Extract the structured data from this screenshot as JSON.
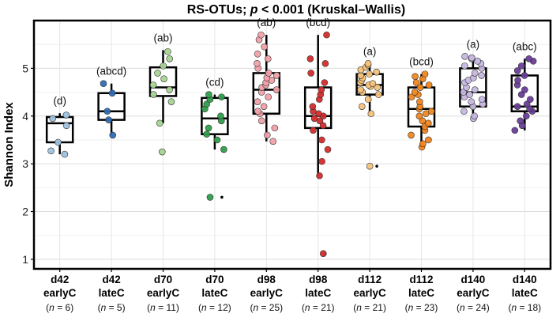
{
  "chart_data": {
    "type": "boxplot",
    "title_prefix": "RS-OTUs; ",
    "title_p": "p",
    "title_suffix": " < 0.001 (Kruskal–Wallis)",
    "ylabel": "Shannon Index",
    "ylim": [
      0.8,
      6.0
    ],
    "yticks": [
      1,
      2,
      3,
      4,
      5
    ],
    "grid": true,
    "groups": [
      {
        "line1": "d42",
        "line2": "earlyC",
        "n_label": "n",
        "n_value": "= 6)",
        "letter": "(d)",
        "color": "#9ec1dd",
        "q1": 3.45,
        "median": 3.85,
        "q3": 3.98,
        "whisker_low": 3.2,
        "whisker_high": 4.06,
        "points": [
          3.2,
          3.27,
          3.45,
          3.8,
          3.95,
          4.02
        ]
      },
      {
        "line1": "d42",
        "line2": "lateC",
        "n_label": "n",
        "n_value": "= 5)",
        "letter": "(abcd)",
        "color": "#2f6eb5",
        "q1": 3.92,
        "median": 4.1,
        "q3": 4.48,
        "whisker_low": 3.6,
        "whisker_high": 4.68,
        "points": [
          3.6,
          3.92,
          4.1,
          4.48,
          4.68
        ]
      },
      {
        "line1": "d70",
        "line2": "earlyC",
        "n_label": "n",
        "n_value": "= 11)",
        "letter": "(ab)",
        "color": "#a5d58f",
        "q1": 4.42,
        "median": 4.6,
        "q3": 5.02,
        "whisker_low": 3.85,
        "whisker_high": 5.38,
        "points": [
          3.25,
          3.85,
          4.3,
          4.45,
          4.55,
          4.65,
          4.78,
          4.9,
          5.05,
          5.2,
          5.35
        ]
      },
      {
        "line1": "d70",
        "line2": "lateC",
        "n_label": "n",
        "n_value": "= 12)",
        "letter": "(cd)",
        "color": "#2e9e4a",
        "q1": 3.62,
        "median": 3.95,
        "q3": 4.38,
        "whisker_low": 3.3,
        "whisker_high": 4.45,
        "outliers": [
          2.3
        ],
        "points": [
          2.3,
          3.3,
          3.5,
          3.62,
          3.75,
          3.9,
          4.0,
          4.15,
          4.25,
          4.35,
          4.4,
          4.45
        ]
      },
      {
        "line1": "d98",
        "line2": "earlyC",
        "n_label": "n",
        "n_value": "= 25)",
        "letter": "(ab)",
        "color": "#f2a0a8",
        "q1": 4.05,
        "median": 4.55,
        "q3": 4.9,
        "whisker_low": 3.47,
        "whisker_high": 5.7,
        "points": [
          3.47,
          3.6,
          3.75,
          3.9,
          4.05,
          4.1,
          4.2,
          4.3,
          4.4,
          4.5,
          4.55,
          4.6,
          4.65,
          4.7,
          4.75,
          4.8,
          4.85,
          4.9,
          5.0,
          5.1,
          5.2,
          5.3,
          5.45,
          5.6,
          5.7
        ]
      },
      {
        "line1": "d98",
        "line2": "lateC",
        "n_label": "n",
        "n_value": "= 21)",
        "letter": "(bcd)",
        "color": "#d42b2b",
        "q1": 3.75,
        "median": 4.0,
        "q3": 4.6,
        "whisker_low": 2.75,
        "whisker_high": 5.7,
        "outliers": [
          1.12
        ],
        "points": [
          1.12,
          2.75,
          3.05,
          3.3,
          3.5,
          3.7,
          3.8,
          3.9,
          3.95,
          4.0,
          4.05,
          4.1,
          4.2,
          4.35,
          4.45,
          4.55,
          4.7,
          4.9,
          5.1,
          5.2,
          5.7
        ]
      },
      {
        "line1": "d112",
        "line2": "earlyC",
        "n_label": "n",
        "n_value": "= 21)",
        "letter": "(a)",
        "color": "#f6c27a",
        "q1": 4.45,
        "median": 4.65,
        "q3": 4.88,
        "whisker_low": 4.05,
        "whisker_high": 5.1,
        "outliers": [
          2.95
        ],
        "points": [
          2.95,
          4.05,
          4.2,
          4.35,
          4.45,
          4.5,
          4.55,
          4.6,
          4.62,
          4.65,
          4.68,
          4.7,
          4.75,
          4.8,
          4.85,
          4.88,
          4.92,
          4.97,
          5.02,
          5.07,
          5.1
        ]
      },
      {
        "line1": "d112",
        "line2": "lateC",
        "n_label": "n",
        "n_value": "= 23)",
        "letter": "(bcd)",
        "color": "#f2861c",
        "q1": 3.78,
        "median": 4.15,
        "q3": 4.6,
        "whisker_low": 3.35,
        "whisker_high": 4.88,
        "points": [
          3.35,
          3.42,
          3.5,
          3.6,
          3.7,
          3.78,
          3.85,
          3.9,
          4.0,
          4.05,
          4.1,
          4.15,
          4.2,
          4.3,
          4.4,
          4.45,
          4.5,
          4.6,
          4.65,
          4.7,
          4.78,
          4.83,
          4.88
        ]
      },
      {
        "line1": "d140",
        "line2": "earlyC",
        "n_label": "n",
        "n_value": "= 24)",
        "letter": "(a)",
        "color": "#c6b6e0",
        "q1": 4.2,
        "median": 4.5,
        "q3": 5.0,
        "whisker_low": 3.95,
        "whisker_high": 5.25,
        "points": [
          3.95,
          4.0,
          4.1,
          4.2,
          4.25,
          4.3,
          4.35,
          4.4,
          4.45,
          4.5,
          4.55,
          4.6,
          4.7,
          4.75,
          4.8,
          4.85,
          4.9,
          5.0,
          5.05,
          5.1,
          5.15,
          5.2,
          5.22,
          5.25
        ]
      },
      {
        "line1": "d140",
        "line2": "lateC",
        "n_label": "n",
        "n_value": "= 18)",
        "letter": "(abc)",
        "color": "#6a3d9a",
        "q1": 4.1,
        "median": 4.2,
        "q3": 4.85,
        "whisker_low": 3.7,
        "whisker_high": 5.2,
        "points": [
          3.7,
          3.8,
          3.9,
          4.0,
          4.1,
          4.15,
          4.2,
          4.25,
          4.35,
          4.45,
          4.55,
          4.65,
          4.75,
          4.85,
          4.95,
          5.05,
          5.15,
          5.2
        ]
      }
    ]
  }
}
